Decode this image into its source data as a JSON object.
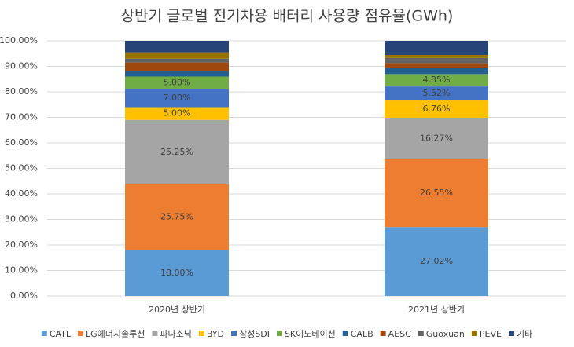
{
  "chart_data": {
    "type": "stacked_bar",
    "title": "상반기 글로벌 전기차용 배터리 사용량 점유율(GWh)",
    "categories": [
      "2020년 상반기",
      "2021년 상반기"
    ],
    "ylim": [
      0,
      100
    ],
    "yticks": [
      {
        "value": 0,
        "label": "0.00%"
      },
      {
        "value": 10,
        "label": "10.00%"
      },
      {
        "value": 20,
        "label": "20.00%"
      },
      {
        "value": 30,
        "label": "30.00%"
      },
      {
        "value": 40,
        "label": "40.00%"
      },
      {
        "value": 50,
        "label": "50.00%"
      },
      {
        "value": 60,
        "label": "60.00%"
      },
      {
        "value": 70,
        "label": "70.00%"
      },
      {
        "value": 80,
        "label": "80.00%"
      },
      {
        "value": 90,
        "label": "90.00%"
      },
      {
        "value": 100,
        "label": "100.00%"
      }
    ],
    "grid": true,
    "legend": "bottom",
    "series": [
      {
        "name": "CATL",
        "color": "#5b9bd5",
        "values": [
          18.0,
          27.02
        ],
        "value_labels": [
          "18.00%",
          "27.02%"
        ]
      },
      {
        "name": "LG에너지솔루션",
        "color": "#ed7d31",
        "values": [
          25.75,
          26.55
        ],
        "value_labels": [
          "25.75%",
          "26.55%"
        ]
      },
      {
        "name": "파나소닉",
        "color": "#a5a5a5",
        "values": [
          25.25,
          16.27
        ],
        "value_labels": [
          "25.25%",
          "16.27%"
        ]
      },
      {
        "name": "BYD",
        "color": "#ffc000",
        "values": [
          5.0,
          6.76
        ],
        "value_labels": [
          "5.00%",
          "6.76%"
        ]
      },
      {
        "name": "삼성SDI",
        "color": "#4472c4",
        "values": [
          7.0,
          5.52
        ],
        "value_labels": [
          "7.00%",
          "5.52%"
        ]
      },
      {
        "name": "SK이노베이션",
        "color": "#70ad47",
        "values": [
          5.0,
          4.85
        ],
        "value_labels": [
          "5.00%",
          "4.85%"
        ]
      },
      {
        "name": "CALB",
        "color": "#255e91",
        "values": [
          2.0,
          2.5
        ]
      },
      {
        "name": "AESC",
        "color": "#9e480e",
        "values": [
          3.5,
          1.8
        ]
      },
      {
        "name": "Guoxuan",
        "color": "#636363",
        "values": [
          1.5,
          2.0
        ]
      },
      {
        "name": "PEVE",
        "color": "#997300",
        "values": [
          2.5,
          1.2
        ]
      },
      {
        "name": "기타",
        "color": "#264478",
        "values": [
          4.5,
          5.53
        ]
      }
    ]
  }
}
